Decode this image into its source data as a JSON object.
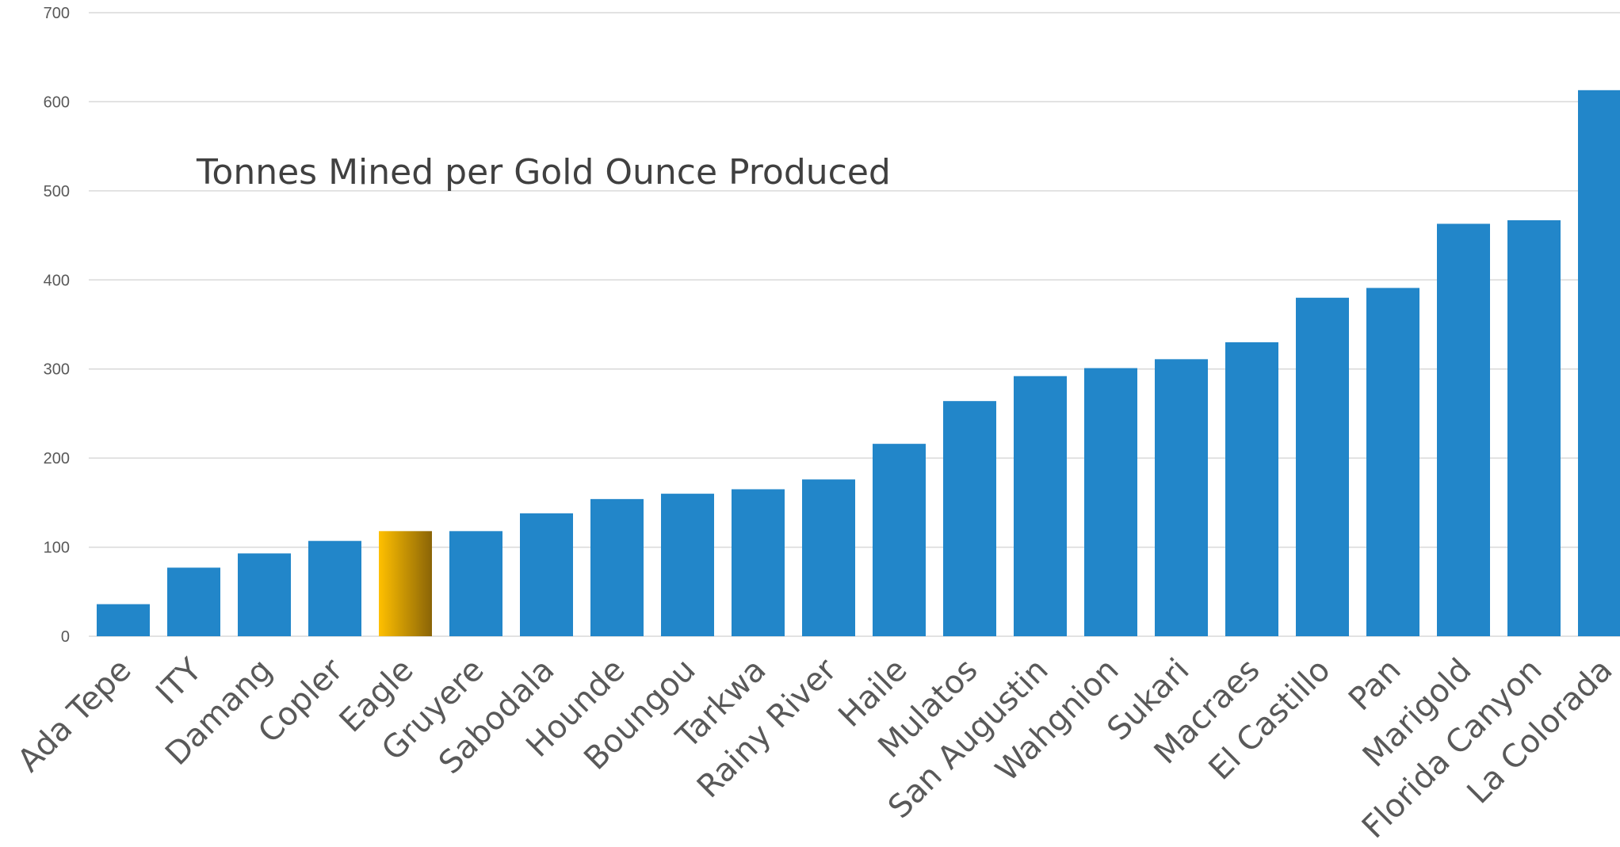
{
  "chart_data": {
    "type": "bar",
    "title": "Tonnes Mined per Gold Ounce Produced",
    "categories": [
      "Ada Tepe",
      "ITY",
      "Damang",
      "Copler",
      "Eagle",
      "Gruyere",
      "Sabodala",
      "Hounde",
      "Boungou",
      "Tarkwa",
      "Rainy River",
      "Haile",
      "Mulatos",
      "San Augustin",
      "Wahgnion",
      "Sukari",
      "Macraes",
      "El Castillo",
      "Pan",
      "Marigold",
      "Florida Canyon",
      "La Colorada"
    ],
    "values": [
      36,
      77,
      93,
      107,
      118,
      118,
      138,
      154,
      160,
      165,
      176,
      216,
      264,
      292,
      301,
      311,
      330,
      380,
      391,
      463,
      467,
      613
    ],
    "highlight_category": "Eagle",
    "ylim": [
      0,
      700
    ],
    "yticks": [
      0,
      100,
      200,
      300,
      400,
      500,
      600,
      700
    ],
    "grid": true,
    "legend": "none",
    "colors": {
      "bar": "#2286c9",
      "highlight_start": "#ffc000",
      "highlight_end": "#8a6407",
      "grid": "#d9d9d9",
      "text": "#595959"
    }
  }
}
